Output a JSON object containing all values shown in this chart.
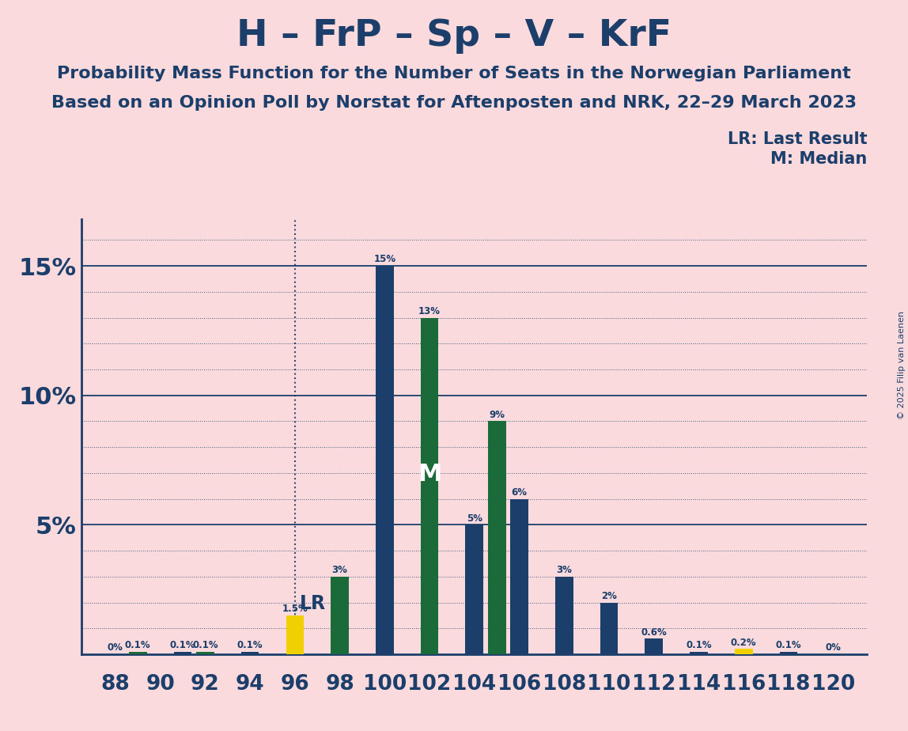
{
  "title": "H – FrP – Sp – V – KrF",
  "subtitle1": "Probability Mass Function for the Number of Seats in the Norwegian Parliament",
  "subtitle2": "Based on an Opinion Poll by Norstat for Aftenposten and NRK, 22–29 March 2023",
  "copyright": "© 2025 Filip van Laenen",
  "lr_label": "LR: Last Result",
  "m_label": "M: Median",
  "background_color": "#FADADD",
  "bar_color_blue": "#1B3E6B",
  "bar_color_green": "#1B6B3A",
  "bar_color_yellow": "#F0D000",
  "axis_color": "#1B3E6B",
  "text_color": "#1B3E6B",
  "lr_seat": 96,
  "m_seat": 102,
  "seats": [
    88,
    89,
    90,
    91,
    92,
    93,
    94,
    95,
    96,
    97,
    98,
    99,
    100,
    101,
    102,
    103,
    104,
    105,
    106,
    107,
    108,
    109,
    110,
    111,
    112,
    113,
    114,
    115,
    116,
    117,
    118,
    119,
    120
  ],
  "colors": [
    "blue",
    "green",
    "yellow",
    "blue",
    "green",
    "yellow",
    "blue",
    "green",
    "yellow",
    "blue",
    "green",
    "yellow",
    "blue",
    "green",
    "green",
    "yellow",
    "blue",
    "green",
    "blue",
    "green",
    "blue",
    "green",
    "blue",
    "green",
    "blue",
    "green",
    "blue",
    "green",
    "yellow",
    "blue",
    "blue",
    "green",
    "yellow"
  ],
  "values": [
    0.0,
    0.001,
    0.0,
    0.001,
    0.001,
    0.0,
    0.001,
    0.0,
    0.015,
    0.0,
    0.03,
    0.0,
    0.15,
    0.0,
    0.13,
    0.0,
    0.05,
    0.09,
    0.06,
    0.0,
    0.03,
    0.0,
    0.02,
    0.0,
    0.006,
    0.0,
    0.001,
    0.0,
    0.002,
    0.0,
    0.001,
    0.0,
    0.0
  ],
  "labels": [
    "0%",
    "0.1%",
    "",
    "0.1%",
    "0.1%",
    "",
    "0.1%",
    "",
    "1.5%",
    "",
    "3%",
    "",
    "15%",
    "",
    "13%",
    "",
    "5%",
    "9%",
    "6%",
    "",
    "3%",
    "",
    "2%",
    "",
    "0.6%",
    "",
    "0.1%",
    "",
    "0.2%",
    "",
    "0.1%",
    "",
    "0%"
  ],
  "xlim_min": 86.5,
  "xlim_max": 121.5,
  "ylim_min": 0,
  "ylim_max": 0.168,
  "yticks": [
    0.05,
    0.1,
    0.15
  ],
  "figsize": [
    11.48,
    9.24
  ],
  "dpi": 100,
  "bar_width": 0.8
}
